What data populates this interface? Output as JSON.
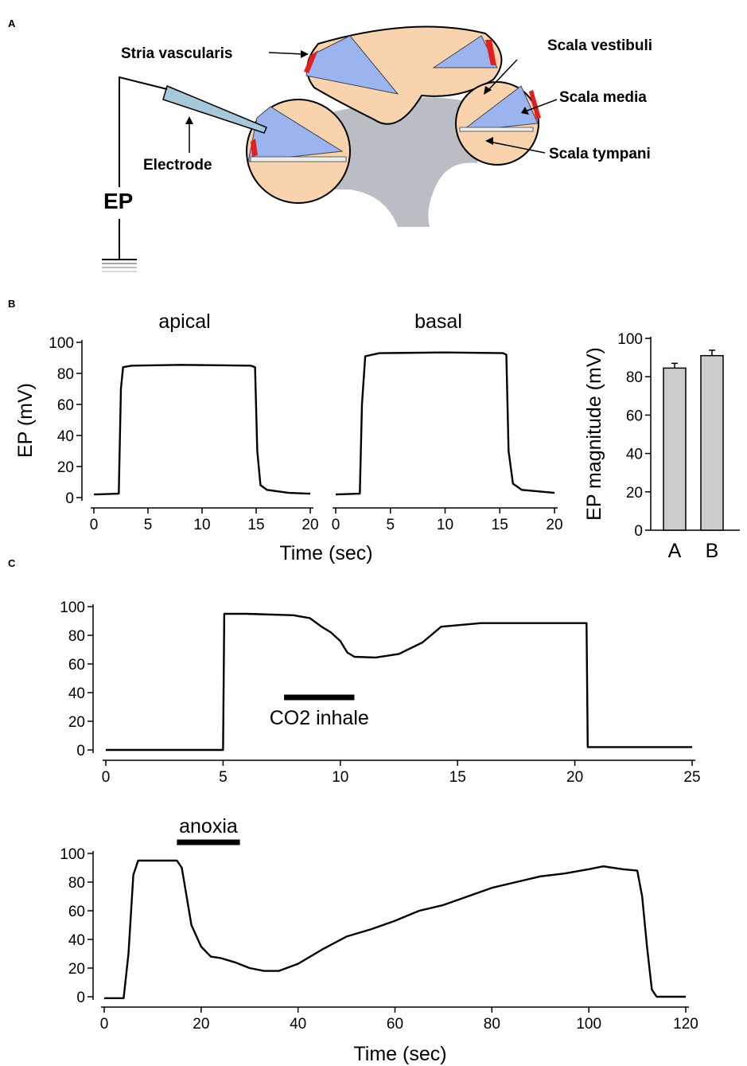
{
  "panels": {
    "a_letter": "A",
    "b_letter": "B",
    "c_letter": "C"
  },
  "diagram": {
    "labels": {
      "stria": "Stria vascularis",
      "vestibuli": "Scala vestibuli",
      "media": "Scala media",
      "tympani": "Scala tympani",
      "electrode": "Electrode",
      "ep": "EP"
    },
    "colors": {
      "scala": "#f8d3ae",
      "media": "#9bb4f0",
      "stria": "#e02020",
      "core": "#babdc3"
    }
  },
  "chart_data": [
    {
      "id": "b_apical",
      "type": "line",
      "title": "apical",
      "xlabel": "Time (sec)",
      "ylabel": "EP (mV)",
      "xlim": [
        0,
        20
      ],
      "ylim": [
        0,
        100
      ],
      "xticks": [
        0,
        5,
        10,
        15,
        20
      ],
      "yticks": [
        0,
        20,
        40,
        60,
        80,
        100
      ],
      "series": [
        {
          "x": [
            0,
            2.3,
            2.5,
            2.7,
            3.5,
            8,
            14.5,
            14.9,
            15.1,
            15.4,
            16,
            18,
            20
          ],
          "y": [
            2,
            2.5,
            70,
            84,
            85,
            85.5,
            85,
            84,
            30,
            8,
            5,
            3,
            2.5
          ]
        }
      ]
    },
    {
      "id": "b_basal",
      "type": "line",
      "title": "basal",
      "xlabel": "",
      "ylabel": "",
      "xlim": [
        0,
        20
      ],
      "ylim": [
        0,
        100
      ],
      "xticks": [
        0,
        5,
        10,
        15,
        20
      ],
      "series": [
        {
          "x": [
            0,
            2.2,
            2.4,
            2.7,
            4,
            10,
            15.3,
            15.6,
            15.8,
            16.2,
            17,
            20
          ],
          "y": [
            2,
            2.5,
            60,
            91,
            93,
            93.5,
            93,
            92,
            30,
            9,
            5,
            3
          ]
        }
      ]
    },
    {
      "id": "b_bar",
      "type": "bar",
      "categories": [
        "A",
        "B"
      ],
      "values": [
        84.5,
        91
      ],
      "errors": [
        2.5,
        2.8
      ],
      "ylabel": "EP magnitude (mV)",
      "ylim": [
        0,
        100
      ],
      "yticks": [
        0,
        20,
        40,
        60,
        80,
        100
      ],
      "bar_color": "#cccccc"
    },
    {
      "id": "c_co2",
      "type": "line",
      "xlim": [
        0,
        25
      ],
      "ylim": [
        0,
        100
      ],
      "xticks": [
        0,
        5,
        10,
        15,
        20,
        25
      ],
      "yticks": [
        0,
        20,
        40,
        60,
        80,
        100
      ],
      "annotation": {
        "label": "CO2 inhale",
        "x_start": 7.6,
        "x_end": 10.6,
        "y": 40
      },
      "series": [
        {
          "x": [
            0,
            5,
            5.05,
            6,
            8,
            8.7,
            9.2,
            9.6,
            10,
            10.3,
            10.6,
            11.5,
            12.5,
            13.5,
            14.3,
            16,
            18,
            20.5,
            20.55,
            21,
            25
          ],
          "y": [
            0,
            0,
            95,
            95,
            94,
            92,
            86,
            82,
            76,
            68,
            65,
            64.5,
            67,
            75,
            86,
            88.5,
            88.5,
            88.5,
            2,
            2,
            2
          ]
        }
      ]
    },
    {
      "id": "c_anoxia",
      "type": "line",
      "xlabel": "Time (sec)",
      "xlim": [
        0,
        120
      ],
      "ylim": [
        0,
        100
      ],
      "xticks": [
        0,
        20,
        40,
        60,
        80,
        100,
        120
      ],
      "yticks": [
        0,
        20,
        40,
        60,
        80,
        100
      ],
      "annotation": {
        "label": "anoxia",
        "x_start": 15,
        "x_end": 28,
        "y": 100
      },
      "series": [
        {
          "x": [
            0,
            4,
            5,
            6,
            7,
            15,
            16,
            17,
            18,
            20,
            22,
            24,
            27,
            30,
            33,
            36,
            40,
            45,
            50,
            55,
            60,
            65,
            70,
            75,
            80,
            85,
            90,
            95,
            100,
            103,
            107,
            110,
            111,
            112,
            113,
            114,
            120
          ],
          "y": [
            -1,
            -1,
            30,
            85,
            95,
            95,
            90,
            70,
            50,
            35,
            28,
            27,
            24,
            20,
            18,
            18,
            23,
            33,
            42,
            47,
            53,
            60,
            64,
            70,
            76,
            80,
            84,
            86,
            89,
            91,
            89,
            88,
            70,
            35,
            5,
            0,
            0
          ]
        }
      ]
    }
  ]
}
